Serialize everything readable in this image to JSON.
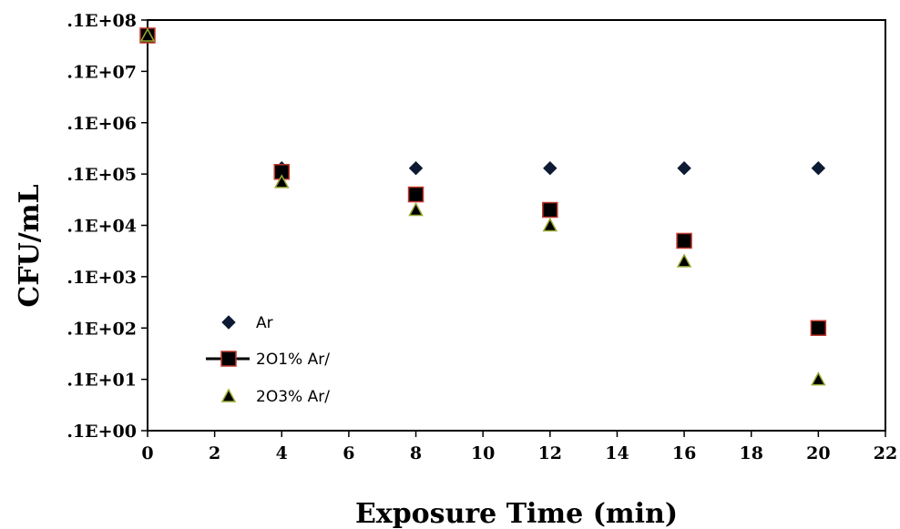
{
  "chart_data": {
    "type": "scatter",
    "title": "",
    "xlabel": "Exposure Time (min)",
    "ylabel": "CFU/mL",
    "xlim": [
      0,
      22
    ],
    "ylim": [
      1,
      100000000
    ],
    "y_scale": "log",
    "x_ticks": [
      0,
      2,
      4,
      6,
      8,
      10,
      12,
      14,
      16,
      18,
      20,
      22
    ],
    "x_tick_labels": [
      "0",
      "2",
      "4",
      "6",
      "8",
      "10",
      "12",
      "14",
      "16",
      "18",
      "20",
      "22"
    ],
    "y_ticks": [
      1,
      10,
      100,
      1000,
      10000,
      100000,
      1000000,
      10000000,
      100000000
    ],
    "y_tick_labels": [
      ".1E+00",
      ".1E+01",
      ".1E+02",
      ".1E+03",
      ".1E+04",
      ".1E+05",
      ".1E+06",
      ".1E+07",
      ".1E+08"
    ],
    "grid": false,
    "legend_position": "bottom-left",
    "series": [
      {
        "name": "Ar",
        "marker": "diamond",
        "color": "#0d1a33",
        "stroke": "#0d1a33",
        "points": [
          [
            0,
            50000000
          ],
          [
            4,
            130000
          ],
          [
            8,
            130000
          ],
          [
            12,
            130000
          ],
          [
            16,
            130000
          ],
          [
            20,
            130000
          ]
        ]
      },
      {
        "name": "2O1% Ar/",
        "marker": "square",
        "color": "#000000",
        "stroke": "#c0392b",
        "points": [
          [
            0,
            50000000
          ],
          [
            4,
            110000
          ],
          [
            8,
            40000
          ],
          [
            12,
            20000
          ],
          [
            16,
            5000
          ],
          [
            20,
            100
          ]
        ]
      },
      {
        "name": "2O3% Ar/",
        "marker": "triangle",
        "color": "#000000",
        "stroke": "#9aa832",
        "points": [
          [
            0,
            50000000
          ],
          [
            4,
            70000
          ],
          [
            8,
            20000
          ],
          [
            12,
            10000
          ],
          [
            16,
            2000
          ],
          [
            20,
            10
          ]
        ]
      }
    ]
  }
}
